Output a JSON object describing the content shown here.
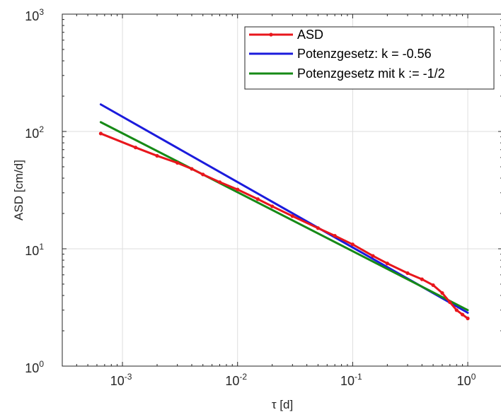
{
  "chart_data": {
    "type": "line",
    "title": "",
    "xlabel": "τ [d]",
    "ylabel": "ASD [cm/d]",
    "x_scale": "log",
    "y_scale": "log",
    "xlim": [
      0.0003,
      2
    ],
    "ylim": [
      1,
      1000
    ],
    "grid": true,
    "legend_position": "top-right",
    "x_ticks": [
      {
        "base": "10",
        "exp": "-3",
        "value": 0.001
      },
      {
        "base": "10",
        "exp": "-2",
        "value": 0.01
      },
      {
        "base": "10",
        "exp": "-1",
        "value": 0.1
      },
      {
        "base": "10",
        "exp": "0",
        "value": 1
      }
    ],
    "y_ticks": [
      {
        "base": "10",
        "exp": "0",
        "value": 1
      },
      {
        "base": "10",
        "exp": "1",
        "value": 10
      },
      {
        "base": "10",
        "exp": "2",
        "value": 100
      },
      {
        "base": "10",
        "exp": "3",
        "value": 1000
      }
    ],
    "series": [
      {
        "name": "ASD",
        "color": "#e8161c",
        "marker": "dot",
        "x": [
          0.000648,
          0.0013,
          0.002,
          0.003,
          0.004,
          0.005,
          0.007,
          0.01,
          0.015,
          0.02,
          0.03,
          0.05,
          0.07,
          0.1,
          0.15,
          0.2,
          0.3,
          0.4,
          0.5,
          0.6,
          0.7,
          0.8,
          0.9,
          1.0
        ],
        "y": [
          96,
          73,
          62,
          54,
          48,
          43,
          37,
          32,
          26.5,
          23,
          19,
          15,
          12.9,
          10.9,
          8.7,
          7.5,
          6.2,
          5.5,
          4.9,
          4.2,
          3.5,
          3.0,
          2.75,
          2.55
        ]
      },
      {
        "name": "Potenzgesetz: k = -0.56",
        "color": "#1b1bdc",
        "x": [
          0.000648,
          1.0
        ],
        "y": [
          170,
          2.85
        ]
      },
      {
        "name": "Potenzgesetz mit k := -1/2",
        "color": "#168a16",
        "x": [
          0.000648,
          1.0
        ],
        "y": [
          120,
          3.0
        ]
      }
    ]
  }
}
